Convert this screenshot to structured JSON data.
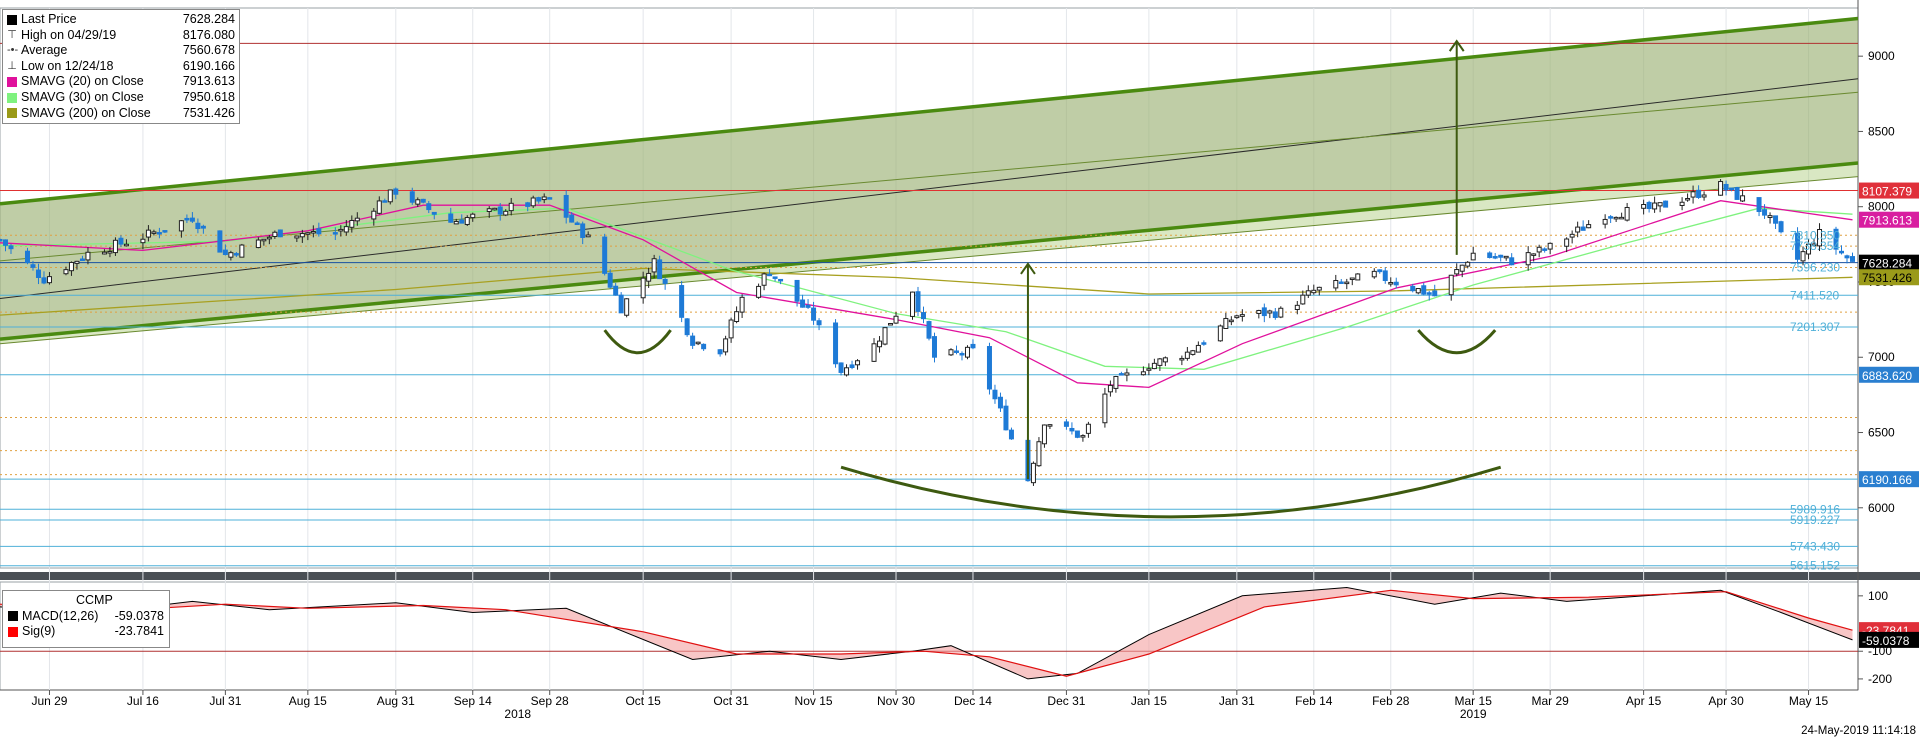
{
  "legend": {
    "rows": [
      {
        "label": "Last Price",
        "value": "7628.284",
        "marker": "square",
        "color": "#000000"
      },
      {
        "label": "High on 04/29/19",
        "value": "8176.080",
        "marker": "high",
        "color": "#555555"
      },
      {
        "label": "Average",
        "value": "7560.678",
        "marker": "avg",
        "color": "#555555"
      },
      {
        "label": "Low on 12/24/18",
        "value": "6190.166",
        "marker": "low",
        "color": "#555555"
      },
      {
        "label": "SMAVG (20)  on Close",
        "value": "7913.613",
        "marker": "square",
        "color": "#e0119c"
      },
      {
        "label": "SMAVG (30)  on Close",
        "value": "7950.618",
        "marker": "square",
        "color": "#7ff27f"
      },
      {
        "label": "SMAVG (200)  on Close",
        "value": "7531.426",
        "marker": "square",
        "color": "#9a9a18"
      }
    ]
  },
  "macd_legend": {
    "title": "CCMP",
    "rows": [
      {
        "label": "MACD(12,26)",
        "value": "-59.0378",
        "color": "#000000"
      },
      {
        "label": "Sig(9)",
        "value": "-23.7841",
        "color": "#ff0000"
      }
    ]
  },
  "timestamp": "24-May-2019 11:14:18",
  "chart_data": [
    {
      "type": "candlestick",
      "symbol": "CCMP",
      "x_ticks": [
        "Jun 29",
        "Jul 16",
        "Jul 31",
        "Aug 15",
        "Aug 31",
        "Sep 14",
        "Sep 28",
        "Oct 15",
        "Oct 31",
        "Nov 15",
        "Nov 30",
        "Dec 14",
        "Dec 31",
        "Jan 15",
        "Jan 31",
        "Feb 14",
        "Feb 28",
        "Mar 15",
        "Mar 29",
        "Apr 15",
        "Apr 30",
        "May 15"
      ],
      "year_labels": [
        "2018",
        "2019"
      ],
      "y_ticks": [
        6000,
        6500,
        7000,
        7500,
        8000,
        8500,
        9000
      ],
      "ylim": [
        5600,
        9320
      ],
      "x_range": [
        "2018-06-20",
        "2019-05-24"
      ],
      "close_path": [
        {
          "d": "2018-06-20",
          "v": 7780
        },
        {
          "d": "2018-06-28",
          "v": 7520
        },
        {
          "d": "2018-07-06",
          "v": 7690
        },
        {
          "d": "2018-07-16",
          "v": 7800
        },
        {
          "d": "2018-07-25",
          "v": 7930
        },
        {
          "d": "2018-07-31",
          "v": 7680
        },
        {
          "d": "2018-08-10",
          "v": 7830
        },
        {
          "d": "2018-08-20",
          "v": 7820
        },
        {
          "d": "2018-08-31",
          "v": 8105
        },
        {
          "d": "2018-09-10",
          "v": 7900
        },
        {
          "d": "2018-09-20",
          "v": 7985
        },
        {
          "d": "2018-09-28",
          "v": 8050
        },
        {
          "d": "2018-10-05",
          "v": 7790
        },
        {
          "d": "2018-10-11",
          "v": 7330
        },
        {
          "d": "2018-10-17",
          "v": 7630
        },
        {
          "d": "2018-10-24",
          "v": 7110
        },
        {
          "d": "2018-10-29",
          "v": 7050
        },
        {
          "d": "2018-11-02",
          "v": 7390
        },
        {
          "d": "2018-11-07",
          "v": 7570
        },
        {
          "d": "2018-11-15",
          "v": 7260
        },
        {
          "d": "2018-11-20",
          "v": 6910
        },
        {
          "d": "2018-11-26",
          "v": 7080
        },
        {
          "d": "2018-12-03",
          "v": 7450
        },
        {
          "d": "2018-12-07",
          "v": 7000
        },
        {
          "d": "2018-12-14",
          "v": 7040
        },
        {
          "d": "2018-12-19",
          "v": 6640
        },
        {
          "d": "2018-12-24",
          "v": 6190
        },
        {
          "d": "2018-12-27",
          "v": 6580
        },
        {
          "d": "2019-01-03",
          "v": 6470
        },
        {
          "d": "2019-01-08",
          "v": 6820
        },
        {
          "d": "2019-01-15",
          "v": 6950
        },
        {
          "d": "2019-01-22",
          "v": 7030
        },
        {
          "d": "2019-01-31",
          "v": 7280
        },
        {
          "d": "2019-02-08",
          "v": 7300
        },
        {
          "d": "2019-02-14",
          "v": 7440
        },
        {
          "d": "2019-02-25",
          "v": 7550
        },
        {
          "d": "2019-03-08",
          "v": 7410
        },
        {
          "d": "2019-03-15",
          "v": 7690
        },
        {
          "d": "2019-03-22",
          "v": 7640
        },
        {
          "d": "2019-03-29",
          "v": 7730
        },
        {
          "d": "2019-04-08",
          "v": 7950
        },
        {
          "d": "2019-04-17",
          "v": 7990
        },
        {
          "d": "2019-04-29",
          "v": 8140
        },
        {
          "d": "2019-05-07",
          "v": 7960
        },
        {
          "d": "2019-05-13",
          "v": 7650
        },
        {
          "d": "2019-05-17",
          "v": 7820
        },
        {
          "d": "2019-05-23",
          "v": 7630
        }
      ],
      "sma20_path": [
        {
          "d": "2018-06-20",
          "v": 7760
        },
        {
          "d": "2018-07-16",
          "v": 7710
        },
        {
          "d": "2018-08-15",
          "v": 7840
        },
        {
          "d": "2018-09-05",
          "v": 8010
        },
        {
          "d": "2018-09-28",
          "v": 8010
        },
        {
          "d": "2018-10-15",
          "v": 7780
        },
        {
          "d": "2018-11-01",
          "v": 7430
        },
        {
          "d": "2018-11-30",
          "v": 7250
        },
        {
          "d": "2018-12-17",
          "v": 7130
        },
        {
          "d": "2019-01-02",
          "v": 6830
        },
        {
          "d": "2019-01-15",
          "v": 6800
        },
        {
          "d": "2019-02-01",
          "v": 7090
        },
        {
          "d": "2019-03-01",
          "v": 7460
        },
        {
          "d": "2019-03-29",
          "v": 7670
        },
        {
          "d": "2019-04-29",
          "v": 8040
        },
        {
          "d": "2019-05-23",
          "v": 7913
        }
      ],
      "sma30_path": [
        {
          "d": "2018-06-20",
          "v": 7740
        },
        {
          "d": "2018-07-31",
          "v": 7770
        },
        {
          "d": "2018-09-10",
          "v": 7960
        },
        {
          "d": "2018-10-01",
          "v": 7990
        },
        {
          "d": "2018-10-31",
          "v": 7580
        },
        {
          "d": "2018-11-30",
          "v": 7290
        },
        {
          "d": "2018-12-20",
          "v": 7170
        },
        {
          "d": "2019-01-07",
          "v": 6940
        },
        {
          "d": "2019-01-25",
          "v": 6920
        },
        {
          "d": "2019-02-20",
          "v": 7200
        },
        {
          "d": "2019-03-15",
          "v": 7480
        },
        {
          "d": "2019-04-12",
          "v": 7760
        },
        {
          "d": "2019-05-06",
          "v": 7990
        },
        {
          "d": "2019-05-23",
          "v": 7950
        }
      ],
      "sma200_path": [
        {
          "d": "2018-06-20",
          "v": 7280
        },
        {
          "d": "2018-08-31",
          "v": 7450
        },
        {
          "d": "2018-10-15",
          "v": 7590
        },
        {
          "d": "2018-11-30",
          "v": 7530
        },
        {
          "d": "2019-01-15",
          "v": 7420
        },
        {
          "d": "2019-02-28",
          "v": 7440
        },
        {
          "d": "2019-04-15",
          "v": 7490
        },
        {
          "d": "2019-05-23",
          "v": 7531
        }
      ],
      "right_labels": [
        {
          "value": 8107.379,
          "text": "8107.379",
          "style": "tag",
          "bg": "#e0303a",
          "fg": "#ffffff"
        },
        {
          "value": 7913.613,
          "text": "7913.613",
          "style": "tag",
          "bg": "#d81ea0",
          "fg": "#ffffff"
        },
        {
          "value": 7628.284,
          "text": "7628.284",
          "style": "tag",
          "bg": "#000000",
          "fg": "#ffffff"
        },
        {
          "value": 7531.426,
          "text": "7531.426",
          "style": "tag",
          "bg": "#9a9a1a",
          "fg": "#000000"
        },
        {
          "value": 6883.62,
          "text": "6883.620",
          "style": "tag",
          "bg": "#2a7fd0",
          "fg": "#ffffff"
        },
        {
          "value": 6190.166,
          "text": "6190.166",
          "style": "tag",
          "bg": "#2a7fd0",
          "fg": "#ffffff"
        },
        {
          "value": 7810.35,
          "text": "7810.350",
          "style": "text",
          "fg": "#4fb0d8"
        },
        {
          "value": 7738.354,
          "text": "7738.354",
          "style": "text",
          "fg": "#4fb0d8"
        },
        {
          "value": 7596.23,
          "text": "7596.230",
          "style": "text",
          "fg": "#4fb0d8"
        },
        {
          "value": 7411.52,
          "text": "7411.520",
          "style": "text",
          "fg": "#4fb0d8"
        },
        {
          "value": 7201.307,
          "text": "7201.307",
          "style": "text",
          "fg": "#4fb0d8"
        },
        {
          "value": 5989.916,
          "text": "5989.916",
          "style": "text",
          "fg": "#4fb0d8"
        },
        {
          "value": 5919.227,
          "text": "5919.227",
          "style": "text",
          "fg": "#4fb0d8"
        },
        {
          "value": 5743.43,
          "text": "5743.430",
          "style": "text",
          "fg": "#4fb0d8"
        },
        {
          "value": 5615.152,
          "text": "5615.152",
          "style": "text",
          "fg": "#4fb0d8"
        }
      ],
      "horizontal_levels": [
        {
          "value": 9085,
          "color": "#b03030"
        },
        {
          "value": 8107.379,
          "color": "#e03030"
        },
        {
          "value": 7628.284,
          "color": "#1a50a0"
        },
        {
          "value": 7411.52,
          "color": "#4fb0d8"
        },
        {
          "value": 7201.307,
          "color": "#4fb0d8"
        },
        {
          "value": 6883.62,
          "color": "#4fb0d8"
        },
        {
          "value": 6190.166,
          "color": "#4fb0d8"
        },
        {
          "value": 5989.916,
          "color": "#4fb0d8"
        },
        {
          "value": 5919.227,
          "color": "#4fb0d8"
        },
        {
          "value": 5743.43,
          "color": "#4fb0d8"
        },
        {
          "value": 5615.152,
          "color": "#4fb0d8"
        }
      ],
      "dotted_levels": [
        7810.35,
        7738.354,
        7596.23,
        7300,
        6600,
        6380,
        6220
      ],
      "channel_lines": [
        {
          "start": {
            "d": "2018-06-20",
            "v": 8020
          },
          "end": {
            "d": "2019-05-24",
            "v": 9250
          },
          "color": "#4a8a10",
          "width": 3.5
        },
        {
          "start": {
            "d": "2018-06-20",
            "v": 7390
          },
          "end": {
            "d": "2019-05-24",
            "v": 8850
          },
          "color": "#2a2a2a",
          "width": 1
        },
        {
          "start": {
            "d": "2018-06-20",
            "v": 7120
          },
          "end": {
            "d": "2019-05-24",
            "v": 8290
          },
          "color": "#4a8a10",
          "width": 3.5
        },
        {
          "start": {
            "d": "2018-06-20",
            "v": 7640
          },
          "end": {
            "d": "2019-05-24",
            "v": 8760
          },
          "color": "#6a8a30",
          "width": 1
        },
        {
          "start": {
            "d": "2018-06-20",
            "v": 7090
          },
          "end": {
            "d": "2019-05-24",
            "v": 8200
          },
          "color": "#6a8a30",
          "width": 1
        }
      ],
      "arrows": [
        {
          "date": "2018-12-24",
          "from": 6190,
          "to": 7620
        },
        {
          "date": "2019-03-12",
          "from": 7680,
          "to": 9100
        }
      ],
      "arcs": [
        {
          "x0": "2018-10-08",
          "x1": "2018-10-20",
          "top": 7180,
          "bottom": 7030
        },
        {
          "x0": "2018-11-20",
          "x1": "2019-03-20",
          "top": 6270,
          "bottom": 5940
        },
        {
          "x0": "2019-03-05",
          "x1": "2019-03-19",
          "top": 7180,
          "bottom": 7030
        }
      ]
    },
    {
      "type": "line",
      "name": "MACD",
      "y_ticks": [
        100,
        -100,
        -200
      ],
      "ylim": [
        -240,
        150
      ],
      "series": [
        {
          "name": "MACD(12,26)",
          "color": "#000000",
          "points": [
            {
              "d": "2018-06-20",
              "v": 60
            },
            {
              "d": "2018-07-06",
              "v": 35
            },
            {
              "d": "2018-07-25",
              "v": 80
            },
            {
              "d": "2018-08-08",
              "v": 50
            },
            {
              "d": "2018-08-31",
              "v": 75
            },
            {
              "d": "2018-09-14",
              "v": 40
            },
            {
              "d": "2018-10-01",
              "v": 55
            },
            {
              "d": "2018-10-24",
              "v": -130
            },
            {
              "d": "2018-11-07",
              "v": -100
            },
            {
              "d": "2018-11-20",
              "v": -130
            },
            {
              "d": "2018-12-03",
              "v": -100
            },
            {
              "d": "2018-12-10",
              "v": -80
            },
            {
              "d": "2018-12-24",
              "v": -200
            },
            {
              "d": "2019-01-02",
              "v": -180
            },
            {
              "d": "2019-01-15",
              "v": -40
            },
            {
              "d": "2019-02-01",
              "v": 100
            },
            {
              "d": "2019-02-20",
              "v": 130
            },
            {
              "d": "2019-03-08",
              "v": 70
            },
            {
              "d": "2019-03-20",
              "v": 110
            },
            {
              "d": "2019-04-01",
              "v": 80
            },
            {
              "d": "2019-04-29",
              "v": 120
            },
            {
              "d": "2019-05-10",
              "v": 40
            },
            {
              "d": "2019-05-23",
              "v": -59
            }
          ]
        },
        {
          "name": "Sig(9)",
          "color": "#ff0000",
          "points": [
            {
              "d": "2018-06-20",
              "v": 70
            },
            {
              "d": "2018-07-10",
              "v": 45
            },
            {
              "d": "2018-07-31",
              "v": 70
            },
            {
              "d": "2018-08-15",
              "v": 55
            },
            {
              "d": "2018-09-05",
              "v": 65
            },
            {
              "d": "2018-09-20",
              "v": 50
            },
            {
              "d": "2018-10-15",
              "v": -30
            },
            {
              "d": "2018-11-01",
              "v": -110
            },
            {
              "d": "2018-11-20",
              "v": -110
            },
            {
              "d": "2018-12-05",
              "v": -100
            },
            {
              "d": "2018-12-17",
              "v": -120
            },
            {
              "d": "2018-12-31",
              "v": -190
            },
            {
              "d": "2019-01-15",
              "v": -110
            },
            {
              "d": "2019-02-05",
              "v": 60
            },
            {
              "d": "2019-02-28",
              "v": 120
            },
            {
              "d": "2019-03-15",
              "v": 90
            },
            {
              "d": "2019-04-05",
              "v": 95
            },
            {
              "d": "2019-04-30",
              "v": 115
            },
            {
              "d": "2019-05-15",
              "v": 20
            },
            {
              "d": "2019-05-23",
              "v": -24
            }
          ]
        }
      ],
      "right_labels": [
        {
          "value": -23.7841,
          "text": "-23.7841",
          "bg": "#e0303a",
          "fg": "#ffffff"
        },
        {
          "value": -59.0378,
          "text": "-59.0378",
          "bg": "#000000",
          "fg": "#ffffff"
        }
      ],
      "zero_line_color": "#b03030"
    }
  ]
}
